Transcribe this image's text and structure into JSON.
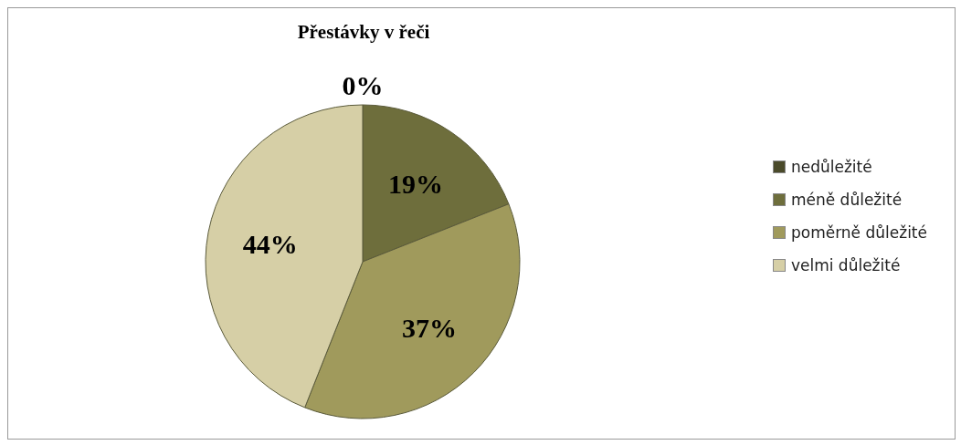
{
  "chart_data": {
    "type": "pie",
    "title": "Přestávky v řeči",
    "categories": [
      "nedůležité",
      "méně důležité",
      "poměrně důležité",
      "velmi důležité"
    ],
    "values": [
      0,
      19,
      37,
      44
    ],
    "colors": [
      "#4a4a2a",
      "#6e6e3c",
      "#a09a5c",
      "#d6cfa6"
    ],
    "value_labels": [
      "0%",
      "19%",
      "37%",
      "44%"
    ],
    "legend": "right"
  }
}
